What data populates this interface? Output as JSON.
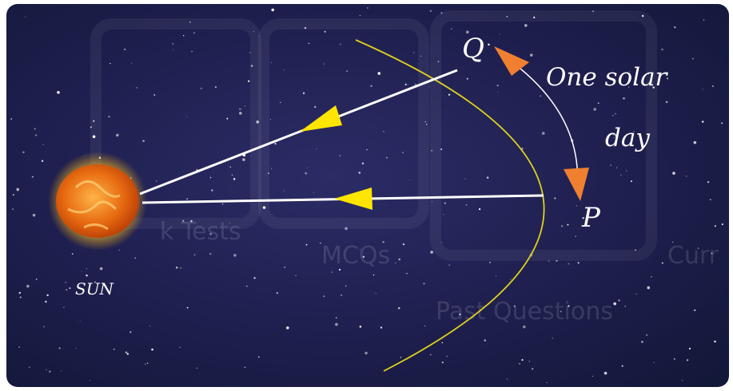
{
  "labels": {
    "q": "Q",
    "p": "P",
    "caption_line1": "One solar",
    "caption_line2": "day",
    "sun": "SUN"
  },
  "watermark": [
    "k Tests",
    "MCQs",
    "Past Questions",
    "Curr"
  ]
}
